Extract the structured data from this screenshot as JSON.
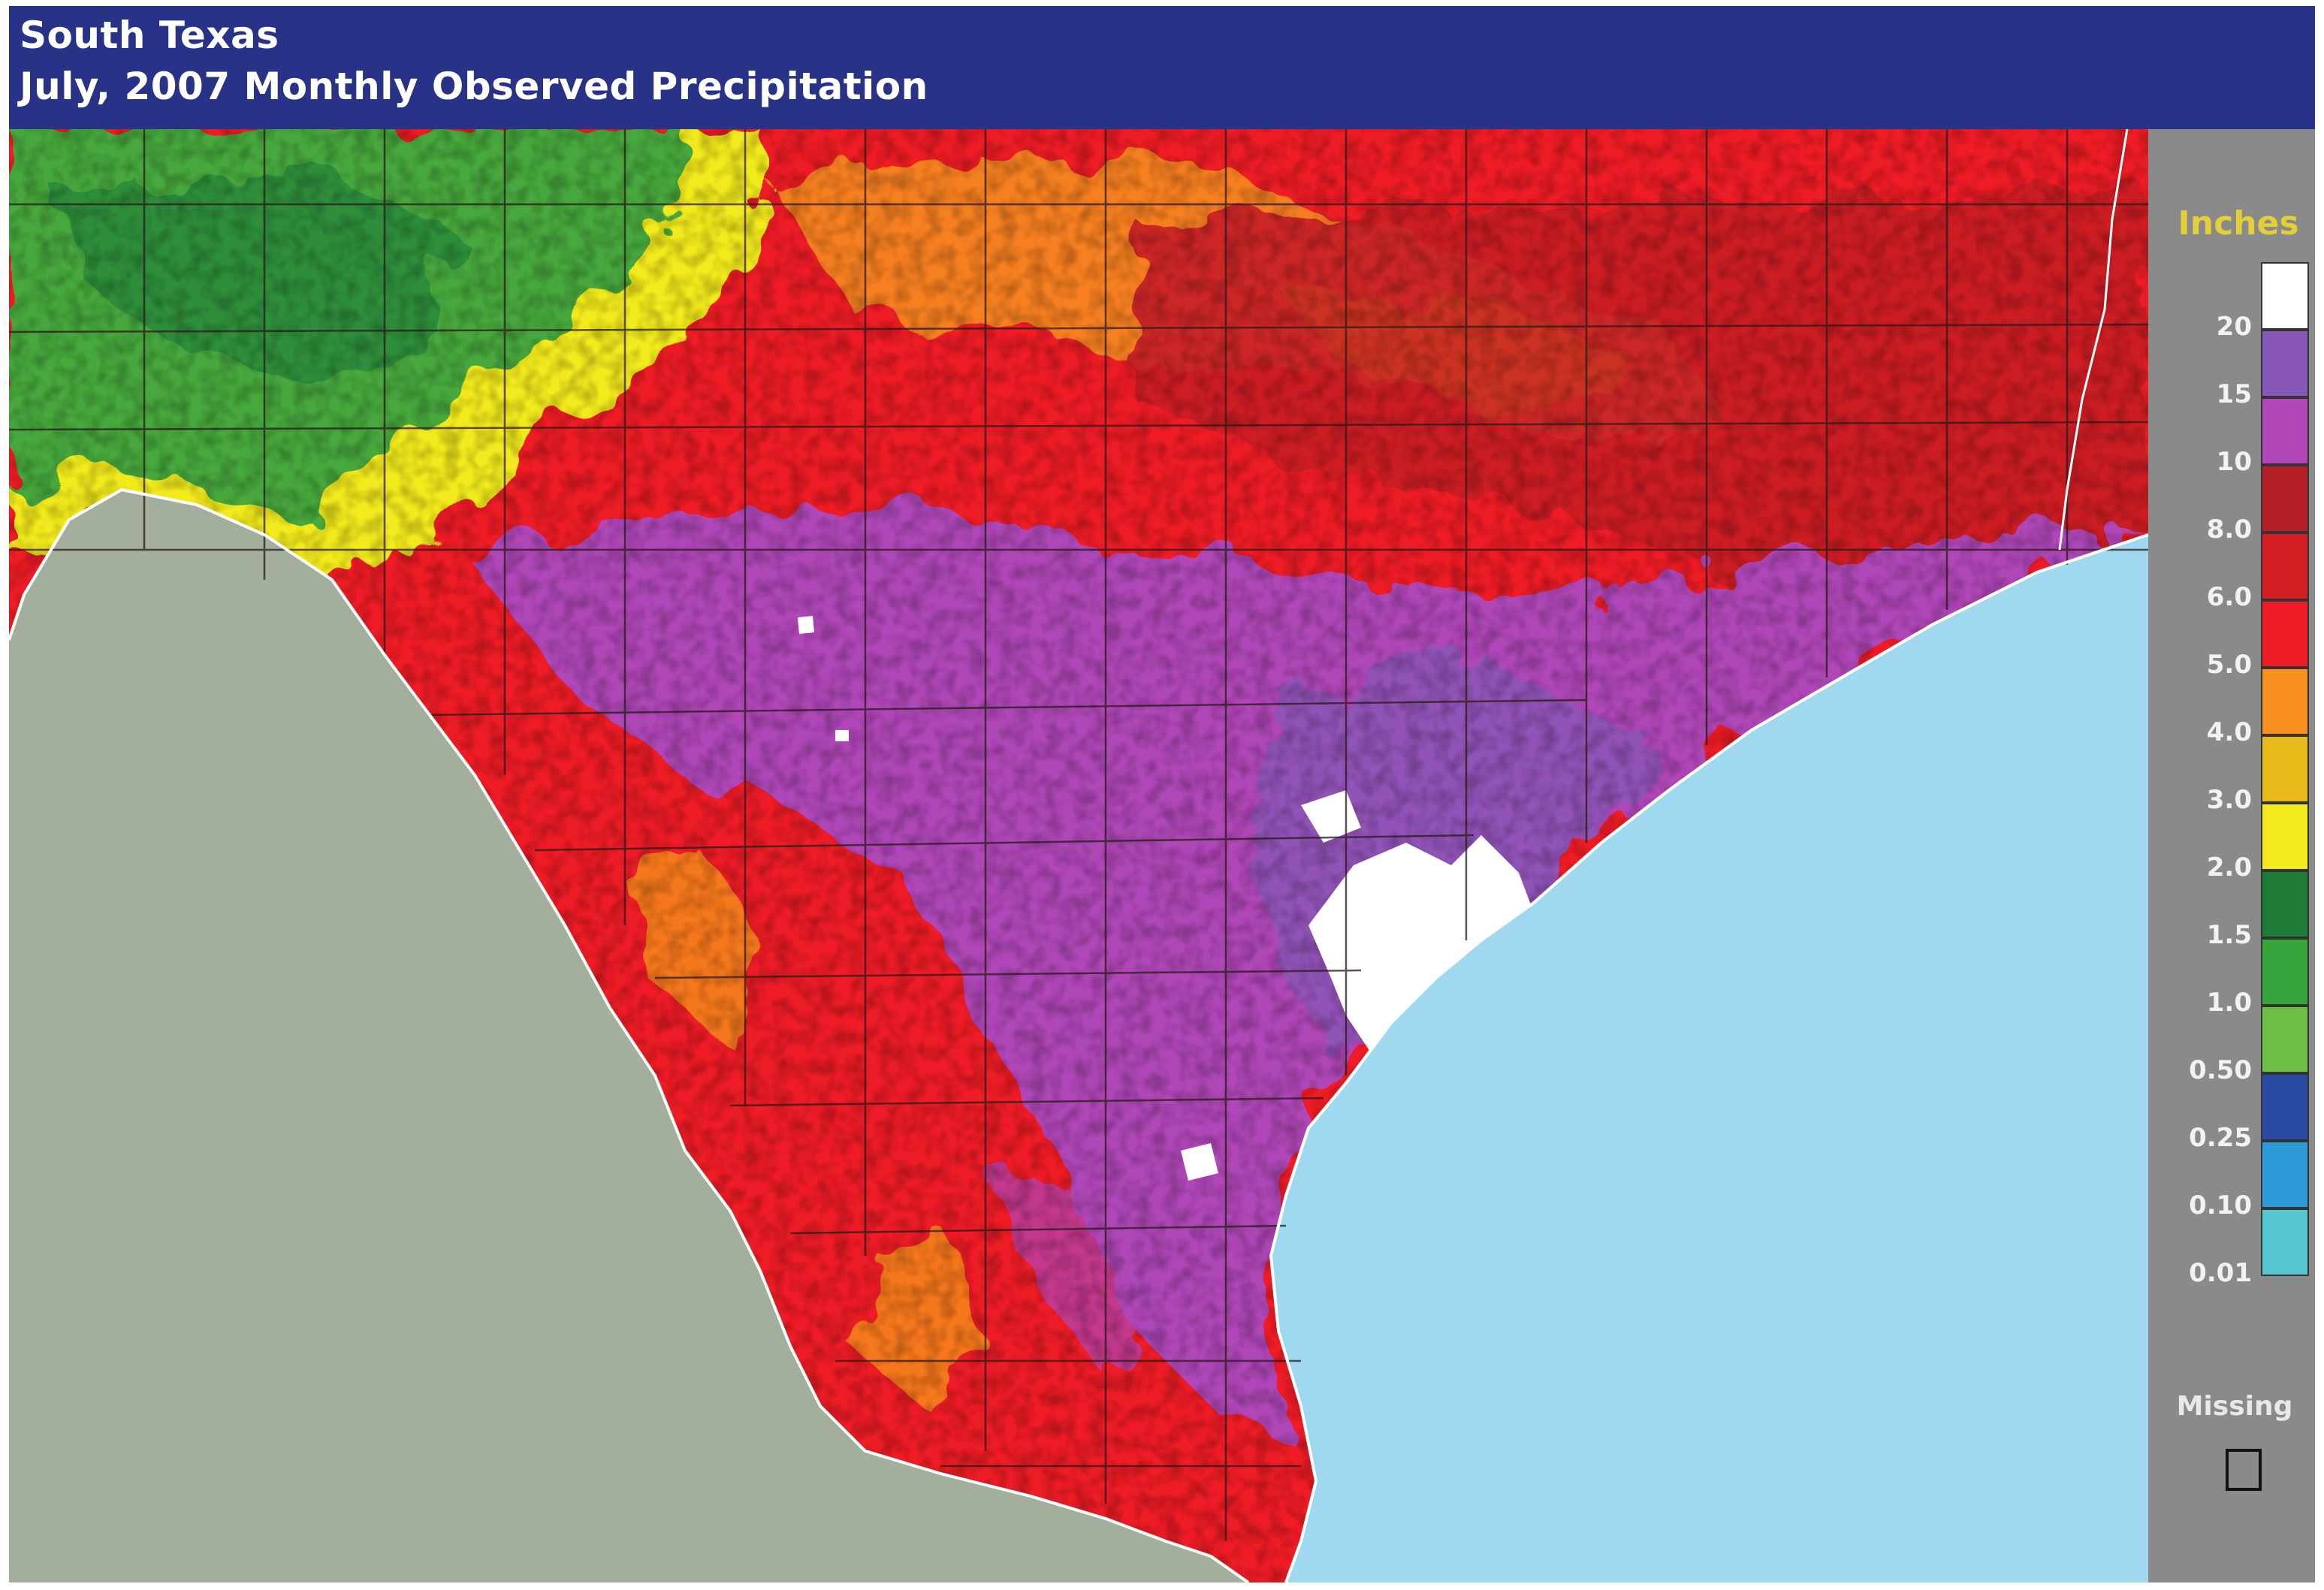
{
  "header": {
    "region": "South Texas",
    "subtitle": "July, 2007 Monthly Observed Precipitation"
  },
  "legend": {
    "units": "Inches",
    "missing_label": "Missing",
    "bins": [
      {
        "label": "20",
        "color": "#ffffff"
      },
      {
        "label": "15",
        "color": "#8858b8"
      },
      {
        "label": "10",
        "color": "#b046b8"
      },
      {
        "label": "8.0",
        "color": "#b51f28"
      },
      {
        "label": "6.0",
        "color": "#d41e24"
      },
      {
        "label": "5.0",
        "color": "#ee1c25"
      },
      {
        "label": "4.0",
        "color": "#f7901e"
      },
      {
        "label": "3.0",
        "color": "#e8b91a"
      },
      {
        "label": "2.0",
        "color": "#f2ea1a"
      },
      {
        "label": "1.5",
        "color": "#1d7a37"
      },
      {
        "label": "1.0",
        "color": "#36a63c"
      },
      {
        "label": "0.50",
        "color": "#6cbf44"
      },
      {
        "label": "0.25",
        "color": "#2a4aa3"
      },
      {
        "label": "0.10",
        "color": "#2d9ad8"
      },
      {
        "label": "0.01",
        "color": "#56c8d2"
      }
    ],
    "missing_color": "#8a8a8a"
  },
  "map_colors": {
    "mexico": "#a3ae9c",
    "gulf": "#a0d9ef",
    "white": "#ffffff",
    "purple": "#b046b8",
    "violet": "#8858b8",
    "red": "#ee1c25",
    "darkred": "#c81e26",
    "orange": "#f7901e",
    "yellow": "#f2ea1a",
    "green": "#46a83e",
    "darkgreen": "#1d7a37",
    "blue": "#2a4aa3"
  }
}
